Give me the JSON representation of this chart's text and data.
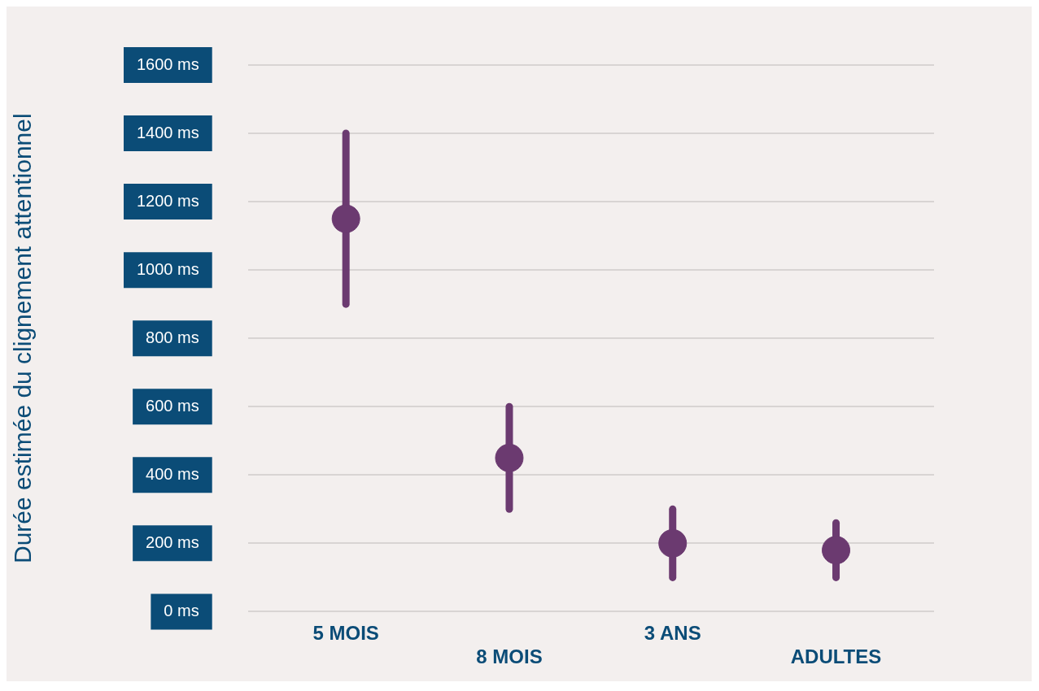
{
  "chart_data": {
    "type": "scatter",
    "ylabel": "Durée estimée du clignement attentionnel",
    "categories": [
      "5 MOIS",
      "8 MOIS",
      "3 ANS",
      "ADULTES"
    ],
    "values": [
      1150,
      450,
      200,
      180
    ],
    "errors": [
      [
        900,
        1400
      ],
      [
        300,
        600
      ],
      [
        100,
        300
      ],
      [
        100,
        260
      ]
    ],
    "color": "#6b3a70",
    "marker": "circle",
    "ylim": [
      0,
      1600
    ],
    "yticks": [
      {
        "value": 0,
        "label": "0 ms"
      },
      {
        "value": 200,
        "label": "200 ms"
      },
      {
        "value": 400,
        "label": "400 ms"
      },
      {
        "value": 600,
        "label": "600 ms"
      },
      {
        "value": 800,
        "label": "800 ms"
      },
      {
        "value": 1000,
        "label": "1000 ms"
      },
      {
        "value": 1200,
        "label": "1200 ms"
      },
      {
        "value": 1400,
        "label": "1400 ms"
      },
      {
        "value": 1600,
        "label": "1600 ms"
      }
    ],
    "grid": "y",
    "legend": false
  }
}
